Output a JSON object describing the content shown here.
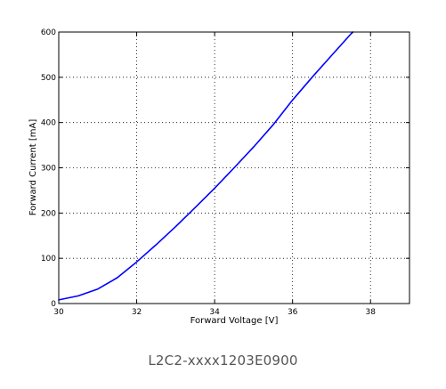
{
  "caption": "L2C2-xxxx1203E0900",
  "colors": {
    "series": "#0000ff",
    "grid": "#000000",
    "axes": "#000000",
    "caption": "#555555"
  },
  "chart_data": {
    "type": "line",
    "xlabel": "Forward Voltage [V]",
    "ylabel": "Forward Current [mA]",
    "xlim": [
      30,
      39
    ],
    "ylim": [
      0,
      600
    ],
    "xticks": [
      30,
      32,
      34,
      36,
      38
    ],
    "yticks": [
      0,
      100,
      200,
      300,
      400,
      500,
      600
    ],
    "grid": true,
    "series": [
      {
        "x": [
          30.0,
          30.5,
          31.0,
          31.5,
          32.0,
          32.5,
          33.0,
          33.5,
          34.0,
          34.5,
          35.0,
          35.5,
          36.0,
          36.5,
          37.0,
          37.5,
          37.55
        ],
        "y": [
          8,
          17,
          32,
          57,
          92,
          130,
          170,
          212,
          255,
          300,
          346,
          395,
          450,
          500,
          548,
          596,
          600
        ]
      }
    ]
  }
}
